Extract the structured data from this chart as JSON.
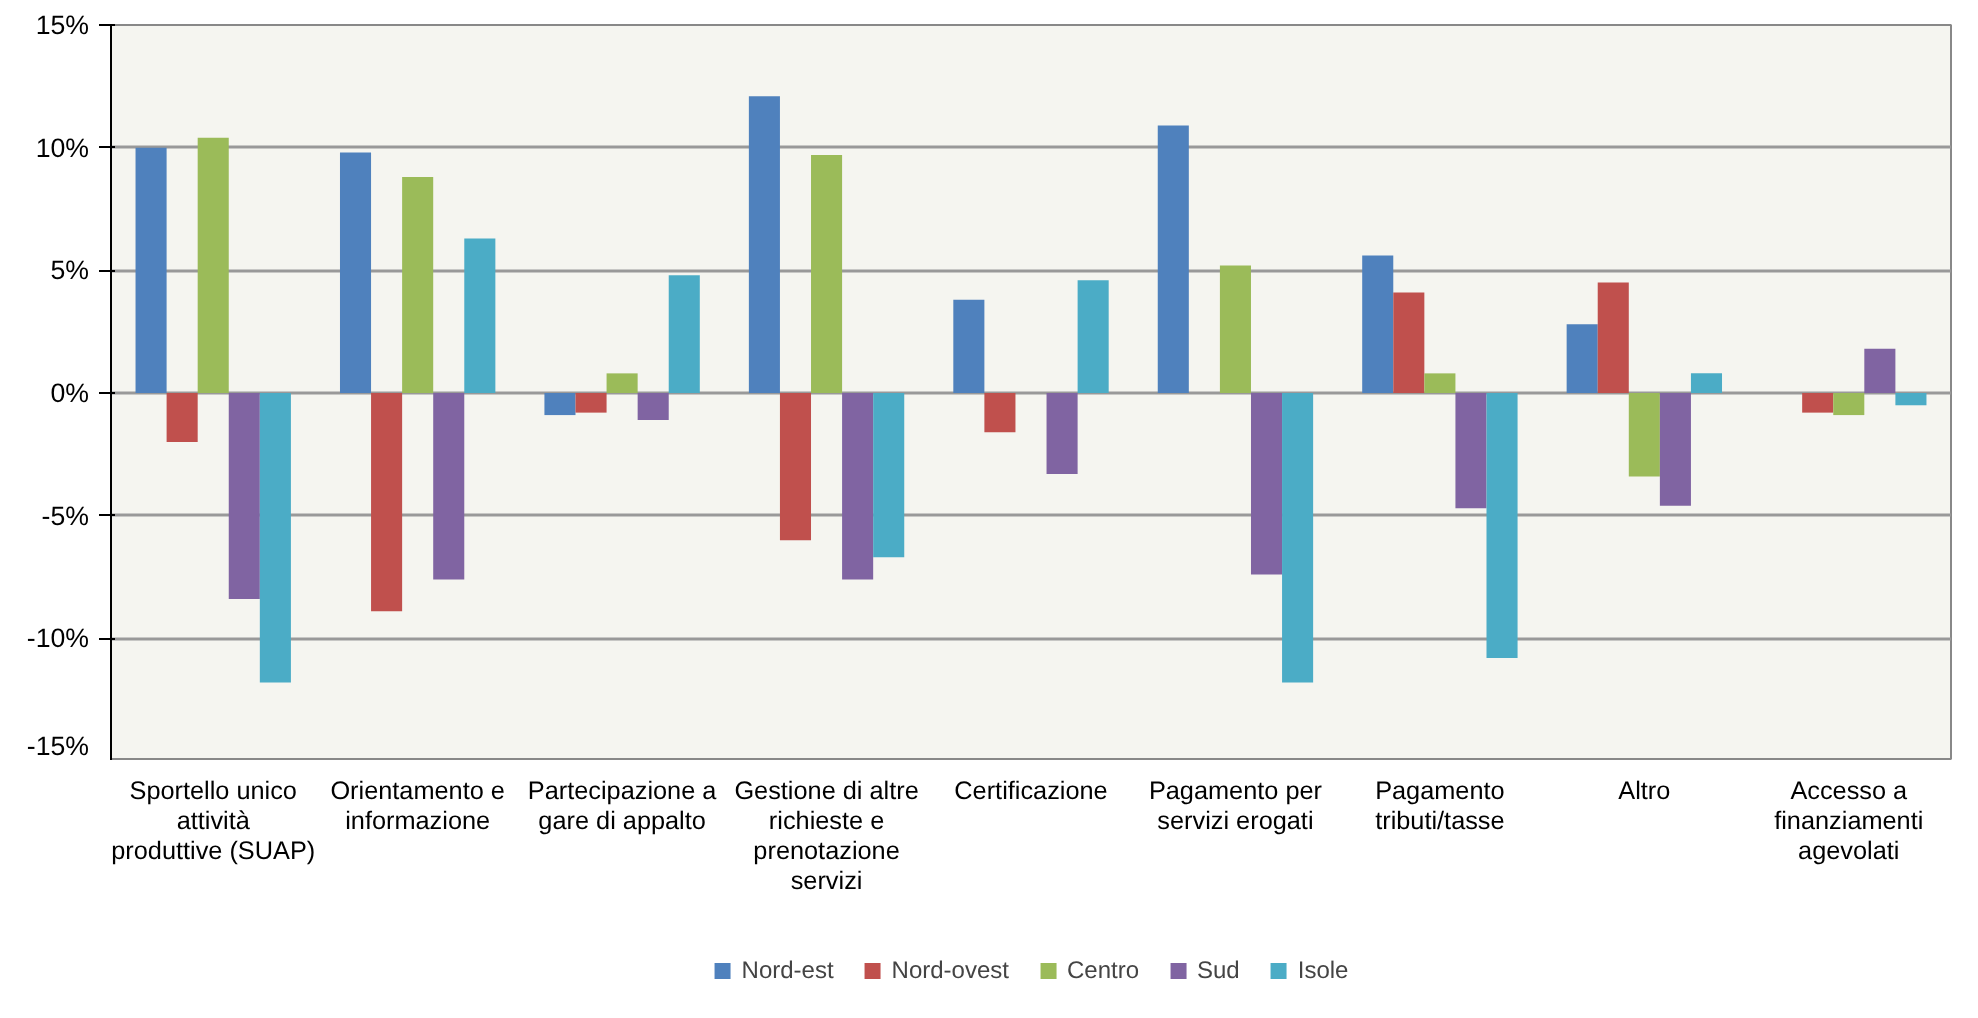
{
  "chart_data": {
    "type": "bar",
    "categories": [
      "Sportello unico attività produttive (SUAP)",
      "Orientamento e informazione",
      "Partecipazione a gare di appalto",
      "Gestione di altre richieste e prenotazione servizi",
      "Certificazione",
      "Pagamento per servizi erogati",
      "Pagamento tributi/tasse",
      "Altro",
      "Accesso a finanziamenti agevolati"
    ],
    "series": [
      {
        "name": "Nord-est",
        "color": "#4f81bd",
        "values": [
          10.0,
          9.8,
          -0.9,
          12.1,
          3.8,
          10.9,
          5.6,
          2.8,
          0
        ]
      },
      {
        "name": "Nord-ovest",
        "color": "#c0504d",
        "values": [
          -2.0,
          -8.9,
          -0.8,
          -6.0,
          -1.6,
          0,
          4.1,
          4.5,
          -0.8
        ]
      },
      {
        "name": "Centro",
        "color": "#9bbb59",
        "values": [
          10.4,
          8.8,
          0.8,
          9.7,
          0,
          5.2,
          0.8,
          -3.4,
          -0.9
        ]
      },
      {
        "name": "Sud",
        "color": "#8064a2",
        "values": [
          -8.4,
          -7.6,
          -1.1,
          -7.6,
          -3.3,
          -7.4,
          -4.7,
          -4.6,
          1.8
        ]
      },
      {
        "name": "Isole",
        "color": "#4bacc6",
        "values": [
          -11.8,
          6.3,
          4.8,
          -6.7,
          4.6,
          -11.8,
          -10.8,
          0.8,
          -0.5
        ]
      }
    ],
    "ylim": [
      -15,
      15
    ],
    "yticks": [
      {
        "value": -15,
        "label": "-15%"
      },
      {
        "value": -10,
        "label": "-10%"
      },
      {
        "value": -5,
        "label": "-5%"
      },
      {
        "value": 0,
        "label": "0%"
      },
      {
        "value": 5,
        "label": "5%"
      },
      {
        "value": 10,
        "label": "10%"
      },
      {
        "value": 15,
        "label": "15%"
      }
    ],
    "grid": "y",
    "legend": "bottom"
  }
}
